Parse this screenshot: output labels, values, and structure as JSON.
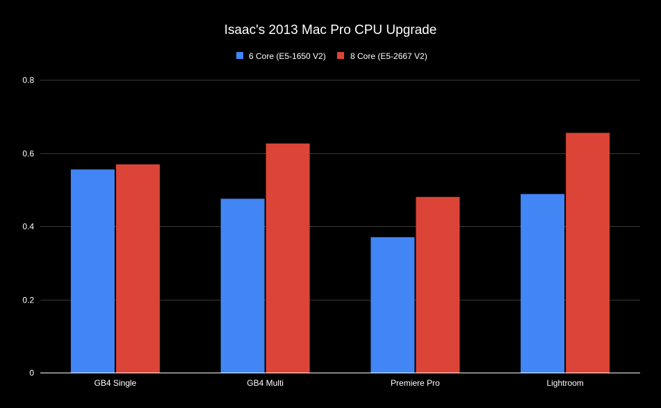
{
  "chart_data": {
    "type": "bar",
    "title": "Isaac's 2013 Mac Pro CPU Upgrade",
    "categories": [
      "GB4 Single",
      "GB4 Multi",
      "Premiere Pro",
      "Lightroom"
    ],
    "series": [
      {
        "name": "6 Core (E5-1650 V2)",
        "color": "#4285f4",
        "values": [
          0.555,
          0.475,
          0.37,
          0.488
        ]
      },
      {
        "name": "8 Core (E5-2667 V2)",
        "color": "#db4437",
        "values": [
          0.569,
          0.626,
          0.48,
          0.655
        ]
      }
    ],
    "ylim": [
      0,
      0.8
    ],
    "yticks": [
      0,
      0.2,
      0.4,
      0.6,
      0.8
    ],
    "ytick_labels": [
      "0",
      "0.2",
      "0.4",
      "0.6",
      "0.8"
    ],
    "xlabel": "",
    "ylabel": "",
    "grid": true,
    "legend_position": "top-center"
  },
  "colors": {
    "background": "#000000",
    "text": "#ffffff",
    "grid": "#3a3a3a"
  }
}
